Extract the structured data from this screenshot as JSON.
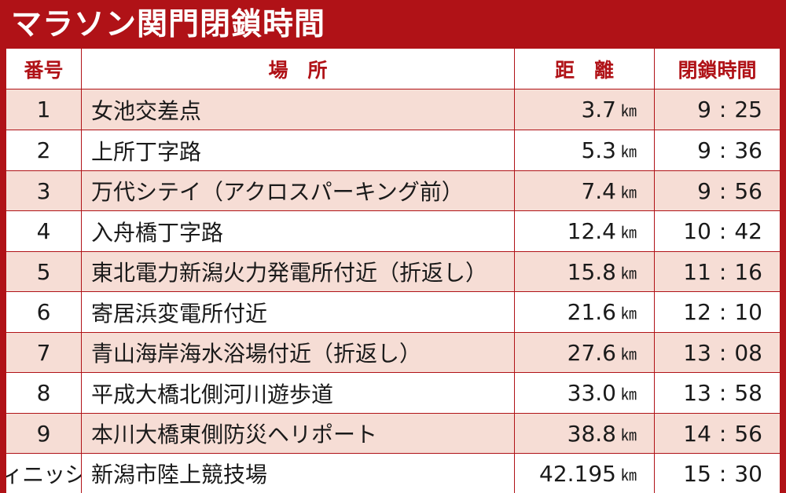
{
  "title": "マラソン関門閉鎖時間",
  "headers": {
    "number": "番号",
    "place": "場　所",
    "distance": "距　離",
    "close_time": "閉鎖時間"
  },
  "unit": "㎞",
  "rows": [
    {
      "number": "1",
      "place": "女池交差点",
      "distance": "3.7",
      "hour": "9",
      "minute": "25"
    },
    {
      "number": "2",
      "place": "上所丁字路",
      "distance": "5.3",
      "hour": "9",
      "minute": "36"
    },
    {
      "number": "3",
      "place": "万代シテイ（アクロスパーキング前）",
      "distance": "7.4",
      "hour": "9",
      "minute": "56"
    },
    {
      "number": "4",
      "place": "入舟橋丁字路",
      "distance": "12.4",
      "hour": "10",
      "minute": "42"
    },
    {
      "number": "5",
      "place": "東北電力新潟火力発電所付近（折返し）",
      "distance": "15.8",
      "hour": "11",
      "minute": "16"
    },
    {
      "number": "6",
      "place": "寄居浜変電所付近",
      "distance": "21.6",
      "hour": "12",
      "minute": "10"
    },
    {
      "number": "7",
      "place": "青山海岸海水浴場付近（折返し）",
      "distance": "27.6",
      "hour": "13",
      "minute": "08"
    },
    {
      "number": "8",
      "place": "平成大橋北側河川遊歩道",
      "distance": "33.0",
      "hour": "13",
      "minute": "58"
    },
    {
      "number": "9",
      "place": "本川大橋東側防災ヘリポート",
      "distance": "38.8",
      "hour": "14",
      "minute": "56"
    },
    {
      "number": "フィニッシュ",
      "place": "新潟市陸上競技場",
      "distance": "42.195",
      "hour": "15",
      "minute": "30"
    }
  ]
}
